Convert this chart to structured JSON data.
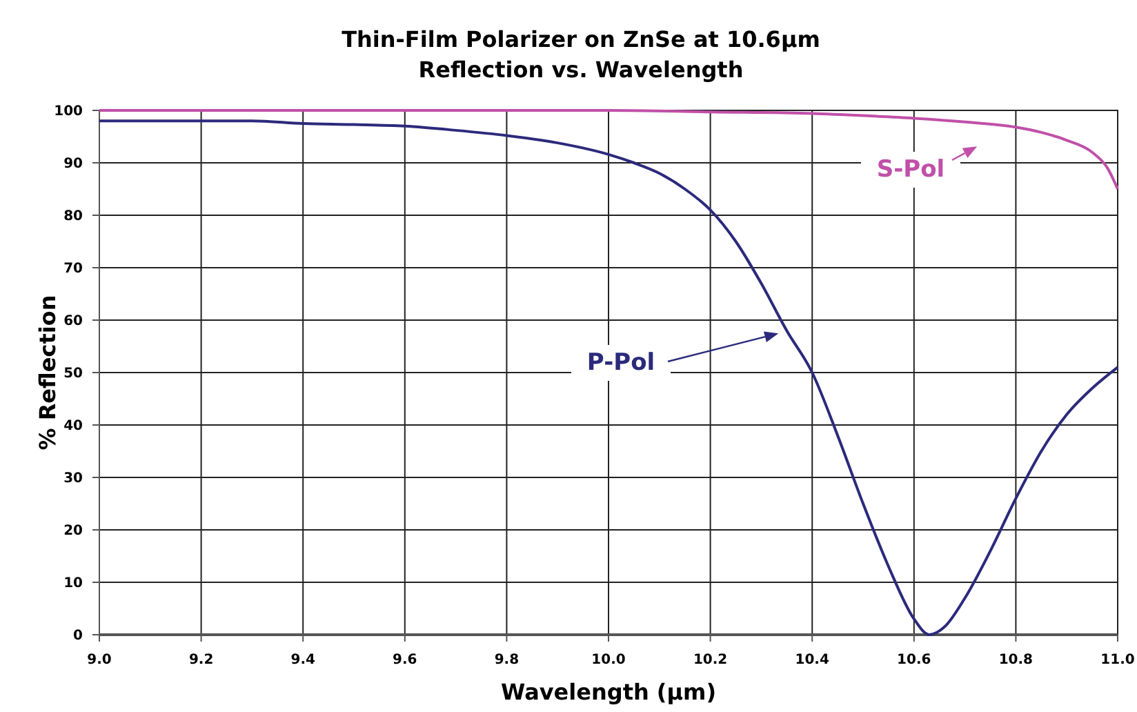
{
  "chart_data": {
    "type": "line",
    "title": "Thin-Film Polarizer on ZnSe at 10.6μm\nReflection vs. Wavelength",
    "xlabel": "Wavelength (μm)",
    "ylabel": "% Reflection",
    "xlim": [
      9.0,
      11.0
    ],
    "ylim": [
      0,
      100
    ],
    "xticks": [
      {
        "value": 9.0,
        "label": "9.0"
      },
      {
        "value": 9.2,
        "label": "9.2"
      },
      {
        "value": 9.4,
        "label": "9.4"
      },
      {
        "value": 9.6,
        "label": "9.6"
      },
      {
        "value": 9.8,
        "label": "9.8"
      },
      {
        "value": 10.0,
        "label": "10.0"
      },
      {
        "value": 10.2,
        "label": "10.2"
      },
      {
        "value": 10.4,
        "label": "10.4"
      },
      {
        "value": 10.6,
        "label": "10.6"
      },
      {
        "value": 10.8,
        "label": "10.8"
      },
      {
        "value": 11.0,
        "label": "11.0"
      }
    ],
    "yticks": [
      0,
      10,
      20,
      30,
      40,
      50,
      60,
      70,
      80,
      90,
      100
    ],
    "grid": true,
    "legend": "right",
    "marker": "none",
    "line_style": "solid",
    "series": [
      {
        "name": "P-Pol",
        "color": "#2b2a7c",
        "x": [
          9.0,
          9.1,
          9.2,
          9.3,
          9.4,
          9.5,
          9.6,
          9.7,
          9.8,
          9.9,
          10.0,
          10.05,
          10.1,
          10.15,
          10.2,
          10.25,
          10.3,
          10.35,
          10.4,
          10.45,
          10.5,
          10.55,
          10.6,
          10.63,
          10.66,
          10.7,
          10.75,
          10.8,
          10.85,
          10.9,
          10.95,
          11.0
        ],
        "values": [
          98,
          98,
          98,
          98,
          97.5,
          97.3,
          97,
          96.2,
          95.2,
          93.8,
          91.6,
          90,
          88,
          85,
          81,
          75,
          67,
          58,
          50,
          38,
          25,
          13,
          3,
          0,
          1.5,
          7,
          16,
          26,
          35,
          42,
          47,
          51
        ]
      },
      {
        "name": "S-Pol",
        "color": "#c050a8",
        "x": [
          9.0,
          9.4,
          9.8,
          10.0,
          10.2,
          10.4,
          10.5,
          10.6,
          10.7,
          10.8,
          10.85,
          10.9,
          10.95,
          10.98,
          11.0
        ],
        "values": [
          100,
          100,
          100,
          100,
          99.7,
          99.4,
          99,
          98.5,
          97.8,
          96.8,
          95.8,
          94.3,
          92,
          89,
          85
        ]
      }
    ]
  }
}
